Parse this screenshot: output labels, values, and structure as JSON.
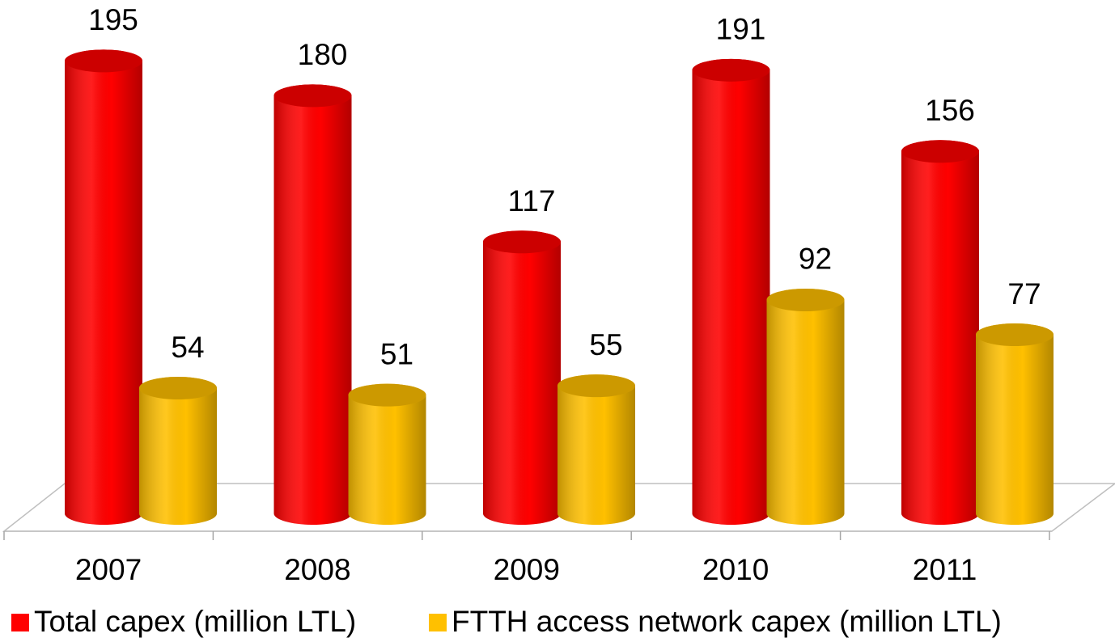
{
  "chart_data": {
    "type": "bar3d",
    "categories": [
      "2007",
      "2008",
      "2009",
      "2010",
      "2011"
    ],
    "series": [
      {
        "name": "Total capex (million LTL)",
        "color": "#ff0000",
        "values": [
          195,
          180,
          117,
          191,
          156
        ]
      },
      {
        "name": "FTTH access network capex (million LTL)",
        "color": "#ffc000",
        "values": [
          54,
          51,
          55,
          92,
          77
        ]
      }
    ]
  }
}
